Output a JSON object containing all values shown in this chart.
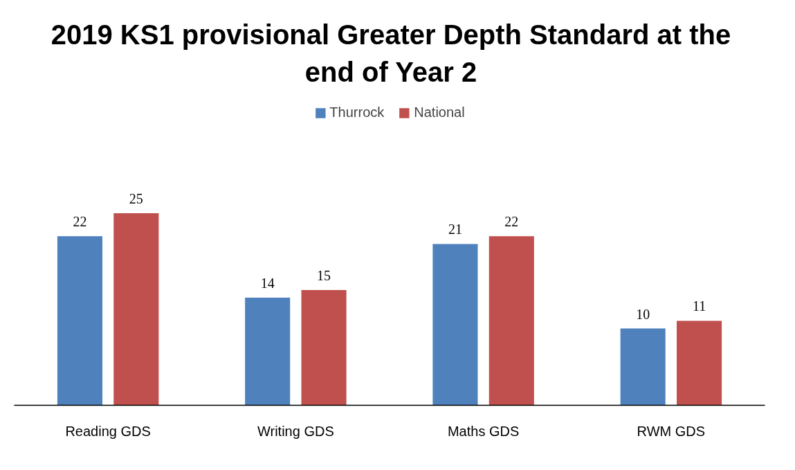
{
  "chart_data": {
    "type": "bar",
    "title": "2019 KS1 provisional Greater Depth Standard at the end of Year 2",
    "categories": [
      "Reading GDS",
      "Writing GDS",
      "Maths GDS",
      "RWM GDS"
    ],
    "series": [
      {
        "name": "Thurrock",
        "color": "#4f81bd",
        "values": [
          22,
          14,
          21,
          10
        ]
      },
      {
        "name": "National",
        "color": "#c0504d",
        "values": [
          25,
          15,
          22,
          11
        ]
      }
    ],
    "data_labels": true,
    "legend": "top",
    "grid": false
  }
}
